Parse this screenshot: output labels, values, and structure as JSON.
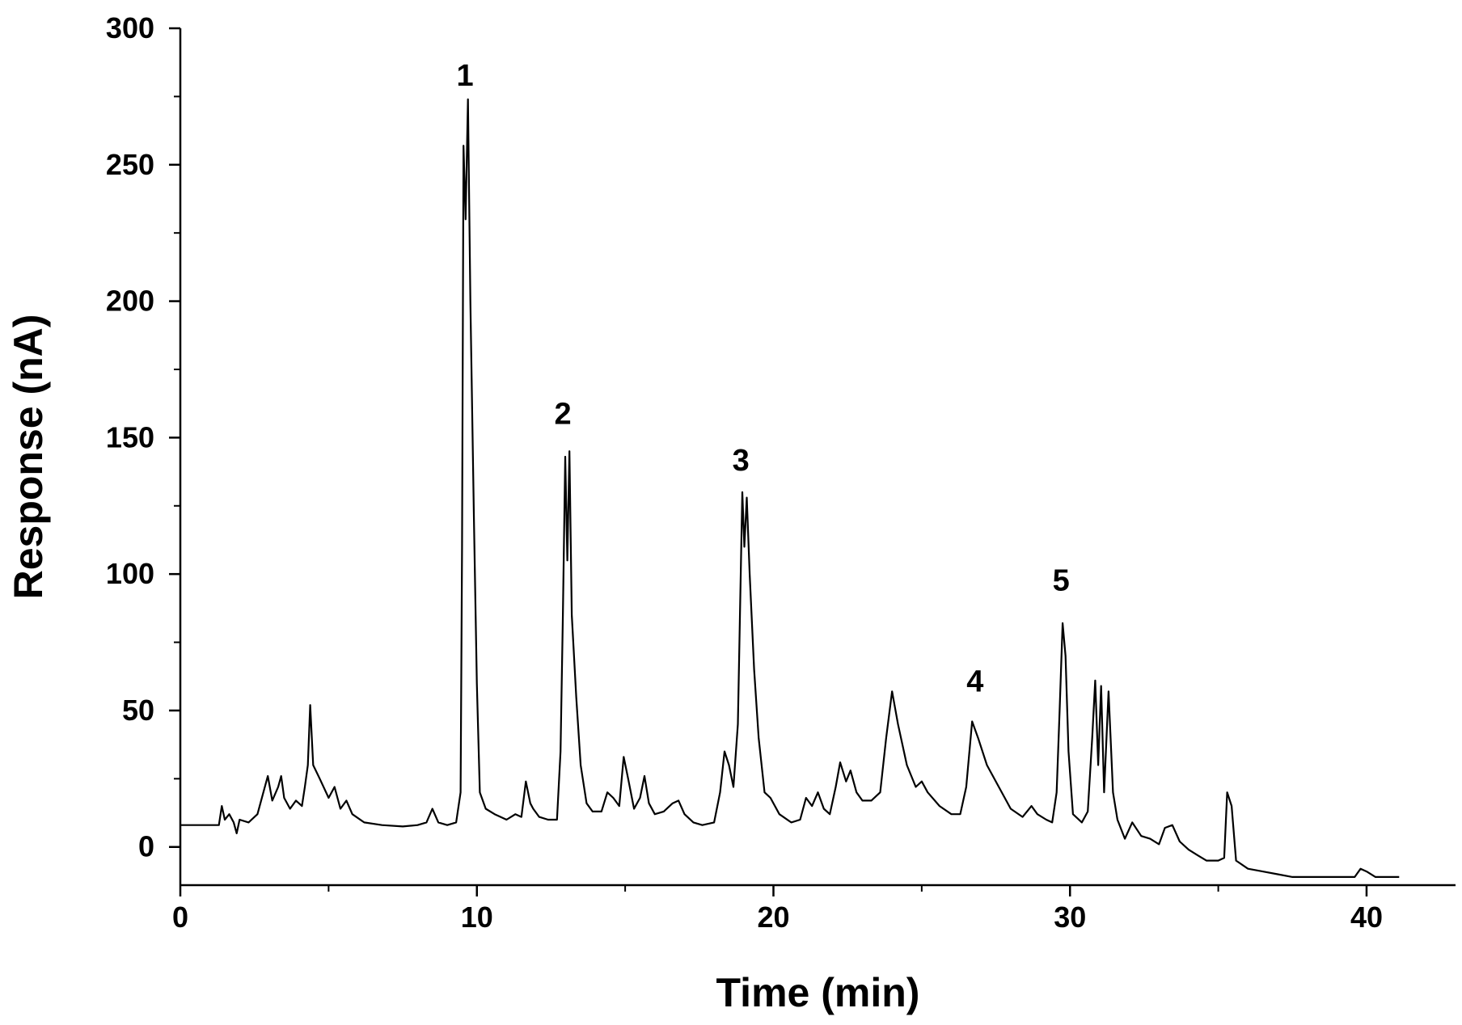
{
  "chart_data": {
    "type": "line",
    "title": "",
    "xlabel": "Time (min)",
    "ylabel": "Response (nA)",
    "xlim": [
      0,
      43
    ],
    "ylim": [
      -14,
      300
    ],
    "xticks": [
      0,
      10,
      20,
      30,
      40
    ],
    "yticks": [
      0,
      50,
      100,
      150,
      200,
      250,
      300
    ],
    "grid": false,
    "legend": "none",
    "line_color": "#000000",
    "series": [
      {
        "values": [
          [
            0,
            8
          ],
          [
            1.3,
            8
          ],
          [
            1.4,
            15
          ],
          [
            1.5,
            10
          ],
          [
            1.65,
            12
          ],
          [
            1.8,
            9
          ],
          [
            1.9,
            5
          ],
          [
            2.0,
            10
          ],
          [
            2.3,
            9
          ],
          [
            2.6,
            12
          ],
          [
            2.8,
            20
          ],
          [
            2.95,
            26
          ],
          [
            3.1,
            17
          ],
          [
            3.3,
            22
          ],
          [
            3.4,
            26
          ],
          [
            3.5,
            18
          ],
          [
            3.7,
            14
          ],
          [
            3.9,
            17
          ],
          [
            4.1,
            15
          ],
          [
            4.2,
            22
          ],
          [
            4.3,
            30
          ],
          [
            4.38,
            52
          ],
          [
            4.48,
            30
          ],
          [
            4.7,
            25
          ],
          [
            5.0,
            18
          ],
          [
            5.2,
            22
          ],
          [
            5.4,
            14
          ],
          [
            5.6,
            17
          ],
          [
            5.8,
            12
          ],
          [
            6.2,
            9
          ],
          [
            6.8,
            8
          ],
          [
            7.5,
            7.5
          ],
          [
            8.0,
            8
          ],
          [
            8.3,
            9
          ],
          [
            8.5,
            14
          ],
          [
            8.7,
            9
          ],
          [
            9.0,
            8
          ],
          [
            9.3,
            9
          ],
          [
            9.45,
            20
          ],
          [
            9.5,
            110
          ],
          [
            9.55,
            257
          ],
          [
            9.62,
            230
          ],
          [
            9.7,
            274
          ],
          [
            9.78,
            200
          ],
          [
            9.9,
            120
          ],
          [
            10.0,
            60
          ],
          [
            10.1,
            20
          ],
          [
            10.3,
            14
          ],
          [
            10.6,
            12
          ],
          [
            10.8,
            11
          ],
          [
            11.0,
            10
          ],
          [
            11.3,
            12
          ],
          [
            11.5,
            11
          ],
          [
            11.65,
            24
          ],
          [
            11.8,
            16
          ],
          [
            11.9,
            14
          ],
          [
            12.1,
            11
          ],
          [
            12.4,
            10
          ],
          [
            12.7,
            10
          ],
          [
            12.82,
            35
          ],
          [
            12.9,
            85
          ],
          [
            12.98,
            143
          ],
          [
            13.05,
            105
          ],
          [
            13.12,
            145
          ],
          [
            13.2,
            85
          ],
          [
            13.35,
            55
          ],
          [
            13.5,
            30
          ],
          [
            13.7,
            16
          ],
          [
            13.9,
            13
          ],
          [
            14.2,
            13
          ],
          [
            14.4,
            20
          ],
          [
            14.6,
            18
          ],
          [
            14.8,
            15
          ],
          [
            14.95,
            33
          ],
          [
            15.1,
            25
          ],
          [
            15.3,
            14
          ],
          [
            15.5,
            18
          ],
          [
            15.65,
            26
          ],
          [
            15.8,
            16
          ],
          [
            16.0,
            12
          ],
          [
            16.3,
            13
          ],
          [
            16.6,
            16
          ],
          [
            16.8,
            17
          ],
          [
            17.0,
            12
          ],
          [
            17.3,
            9
          ],
          [
            17.6,
            8
          ],
          [
            18.0,
            9
          ],
          [
            18.2,
            20
          ],
          [
            18.35,
            35
          ],
          [
            18.5,
            30
          ],
          [
            18.65,
            22
          ],
          [
            18.8,
            45
          ],
          [
            18.88,
            90
          ],
          [
            18.95,
            130
          ],
          [
            19.02,
            110
          ],
          [
            19.1,
            128
          ],
          [
            19.2,
            100
          ],
          [
            19.35,
            65
          ],
          [
            19.5,
            40
          ],
          [
            19.7,
            20
          ],
          [
            19.9,
            18
          ],
          [
            20.2,
            12
          ],
          [
            20.6,
            9
          ],
          [
            20.9,
            10
          ],
          [
            21.1,
            18
          ],
          [
            21.3,
            15
          ],
          [
            21.5,
            20
          ],
          [
            21.7,
            14
          ],
          [
            21.9,
            12
          ],
          [
            22.1,
            22
          ],
          [
            22.25,
            31
          ],
          [
            22.45,
            24
          ],
          [
            22.6,
            28
          ],
          [
            22.8,
            20
          ],
          [
            23.0,
            17
          ],
          [
            23.3,
            17
          ],
          [
            23.6,
            20
          ],
          [
            23.8,
            40
          ],
          [
            24.0,
            57
          ],
          [
            24.2,
            45
          ],
          [
            24.5,
            30
          ],
          [
            24.8,
            22
          ],
          [
            25.0,
            24
          ],
          [
            25.2,
            20
          ],
          [
            25.6,
            15
          ],
          [
            26.0,
            12
          ],
          [
            26.3,
            12
          ],
          [
            26.5,
            22
          ],
          [
            26.7,
            46
          ],
          [
            26.9,
            40
          ],
          [
            27.2,
            30
          ],
          [
            27.6,
            22
          ],
          [
            28.0,
            14
          ],
          [
            28.4,
            11
          ],
          [
            28.7,
            15
          ],
          [
            28.9,
            12
          ],
          [
            29.2,
            10
          ],
          [
            29.4,
            9
          ],
          [
            29.55,
            20
          ],
          [
            29.65,
            50
          ],
          [
            29.75,
            82
          ],
          [
            29.85,
            70
          ],
          [
            29.95,
            35
          ],
          [
            30.1,
            12
          ],
          [
            30.4,
            9
          ],
          [
            30.6,
            13
          ],
          [
            30.75,
            40
          ],
          [
            30.85,
            61
          ],
          [
            30.95,
            30
          ],
          [
            31.05,
            59
          ],
          [
            31.15,
            20
          ],
          [
            31.3,
            57
          ],
          [
            31.45,
            20
          ],
          [
            31.6,
            10
          ],
          [
            31.85,
            3
          ],
          [
            32.1,
            9
          ],
          [
            32.4,
            4
          ],
          [
            32.7,
            3
          ],
          [
            33.0,
            1
          ],
          [
            33.2,
            7
          ],
          [
            33.45,
            8
          ],
          [
            33.7,
            2
          ],
          [
            34.0,
            -1
          ],
          [
            34.3,
            -3
          ],
          [
            34.6,
            -5
          ],
          [
            35.0,
            -5
          ],
          [
            35.2,
            -4
          ],
          [
            35.3,
            20
          ],
          [
            35.45,
            15
          ],
          [
            35.6,
            -5
          ],
          [
            36.0,
            -8
          ],
          [
            36.5,
            -9
          ],
          [
            37.0,
            -10
          ],
          [
            37.5,
            -11
          ],
          [
            38.0,
            -11
          ],
          [
            38.5,
            -11
          ],
          [
            39.0,
            -11
          ],
          [
            39.6,
            -11
          ],
          [
            39.8,
            -8
          ],
          [
            40.0,
            -9
          ],
          [
            40.3,
            -11
          ],
          [
            40.8,
            -11
          ],
          [
            41.1,
            -11
          ]
        ]
      }
    ],
    "annotations": [
      {
        "text": "1",
        "x": 9.6,
        "y": 279
      },
      {
        "text": "2",
        "x": 12.9,
        "y": 155
      },
      {
        "text": "3",
        "x": 18.9,
        "y": 138
      },
      {
        "text": "4",
        "x": 26.8,
        "y": 57
      },
      {
        "text": "5",
        "x": 29.7,
        "y": 94
      }
    ]
  }
}
